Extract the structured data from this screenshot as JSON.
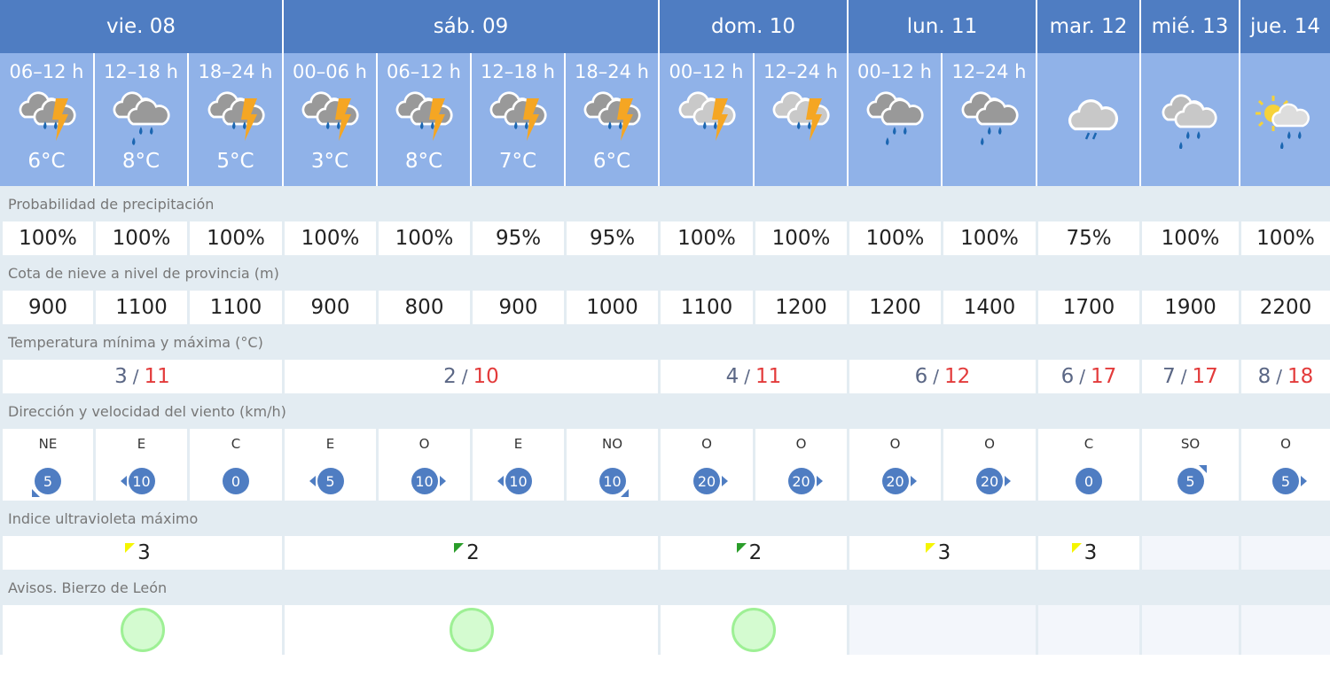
{
  "colors": {
    "header": "#4f7dc2",
    "period": "#90b2e8",
    "label_row": "#e3ecf2",
    "temp_max": "#e33b3b",
    "uv_yellow": "#f5f500",
    "uv_green": "#2a9d2a",
    "aviso_green": "#9ef095"
  },
  "days": [
    {
      "label": "vie. 08",
      "span": 3,
      "tmin": "3",
      "tmax": "11",
      "uv": "3",
      "uv_color": "yellow",
      "aviso": "green"
    },
    {
      "label": "sáb. 09",
      "span": 4,
      "tmin": "2",
      "tmax": "10",
      "uv": "2",
      "uv_color": "green",
      "aviso": "green"
    },
    {
      "label": "dom. 10",
      "span": 2,
      "tmin": "4",
      "tmax": "11",
      "uv": "2",
      "uv_color": "green",
      "aviso": "green"
    },
    {
      "label": "lun. 11",
      "span": 2,
      "tmin": "6",
      "tmax": "12",
      "uv": "3",
      "uv_color": "yellow",
      "aviso": null
    },
    {
      "label": "mar. 12",
      "span": 1,
      "tmin": "6",
      "tmax": "17",
      "uv": "3",
      "uv_color": "yellow",
      "aviso": null
    },
    {
      "label": "mié. 13",
      "span": 1,
      "tmin": "7",
      "tmax": "17",
      "uv": null,
      "aviso": null
    },
    {
      "label": "jue. 14",
      "span": 1,
      "tmin": "8",
      "tmax": "18",
      "uv": null,
      "aviso": null
    }
  ],
  "temp_separator": "/",
  "periods": [
    {
      "label": "06–12 h",
      "icon": "storm-rain",
      "temp": "6°C",
      "precip": "100%",
      "snow": "900",
      "wind_dir": "NE",
      "wind_speed": "5"
    },
    {
      "label": "12–18 h",
      "icon": "rain",
      "temp": "8°C",
      "precip": "100%",
      "snow": "1100",
      "wind_dir": "E",
      "wind_speed": "10"
    },
    {
      "label": "18–24 h",
      "icon": "storm-rain",
      "temp": "5°C",
      "precip": "100%",
      "snow": "1100",
      "wind_dir": "C",
      "wind_speed": "0"
    },
    {
      "label": "00–06 h",
      "icon": "storm-rain",
      "temp": "3°C",
      "precip": "100%",
      "snow": "900",
      "wind_dir": "E",
      "wind_speed": "5"
    },
    {
      "label": "06–12 h",
      "icon": "storm-rain",
      "temp": "8°C",
      "precip": "100%",
      "snow": "800",
      "wind_dir": "O",
      "wind_speed": "10"
    },
    {
      "label": "12–18 h",
      "icon": "storm-rain",
      "temp": "7°C",
      "precip": "95%",
      "snow": "900",
      "wind_dir": "E",
      "wind_speed": "10"
    },
    {
      "label": "18–24 h",
      "icon": "storm-rain",
      "temp": "6°C",
      "precip": "95%",
      "snow": "1000",
      "wind_dir": "NO",
      "wind_speed": "10"
    },
    {
      "label": "00–12 h",
      "icon": "storm-rain-light",
      "temp": null,
      "precip": "100%",
      "snow": "1100",
      "wind_dir": "O",
      "wind_speed": "20"
    },
    {
      "label": "12–24 h",
      "icon": "storm-rain-light",
      "temp": null,
      "precip": "100%",
      "snow": "1200",
      "wind_dir": "O",
      "wind_speed": "20"
    },
    {
      "label": "00–12 h",
      "icon": "rain",
      "temp": null,
      "precip": "100%",
      "snow": "1200",
      "wind_dir": "O",
      "wind_speed": "20"
    },
    {
      "label": "12–24 h",
      "icon": "rain",
      "temp": null,
      "precip": "100%",
      "snow": "1400",
      "wind_dir": "O",
      "wind_speed": "20"
    },
    {
      "label": null,
      "icon": "light-rain",
      "temp": null,
      "precip": "75%",
      "snow": "1700",
      "wind_dir": "C",
      "wind_speed": "0"
    },
    {
      "label": null,
      "icon": "light-rain-cloud",
      "temp": null,
      "precip": "100%",
      "snow": "1900",
      "wind_dir": "SO",
      "wind_speed": "5"
    },
    {
      "label": null,
      "icon": "sun-cloud-rain",
      "temp": null,
      "precip": "100%",
      "snow": "2200",
      "wind_dir": "O",
      "wind_speed": "5"
    }
  ],
  "labels": {
    "precip": "Probabilidad de precipitación",
    "snow": "Cota de nieve a nivel de provincia (m)",
    "temp": "Temperatura mínima y máxima (°C)",
    "wind": "Dirección y velocidad del viento (km/h)",
    "uv": "Indice ultravioleta máximo",
    "avisos": "Avisos. Bierzo de León"
  }
}
